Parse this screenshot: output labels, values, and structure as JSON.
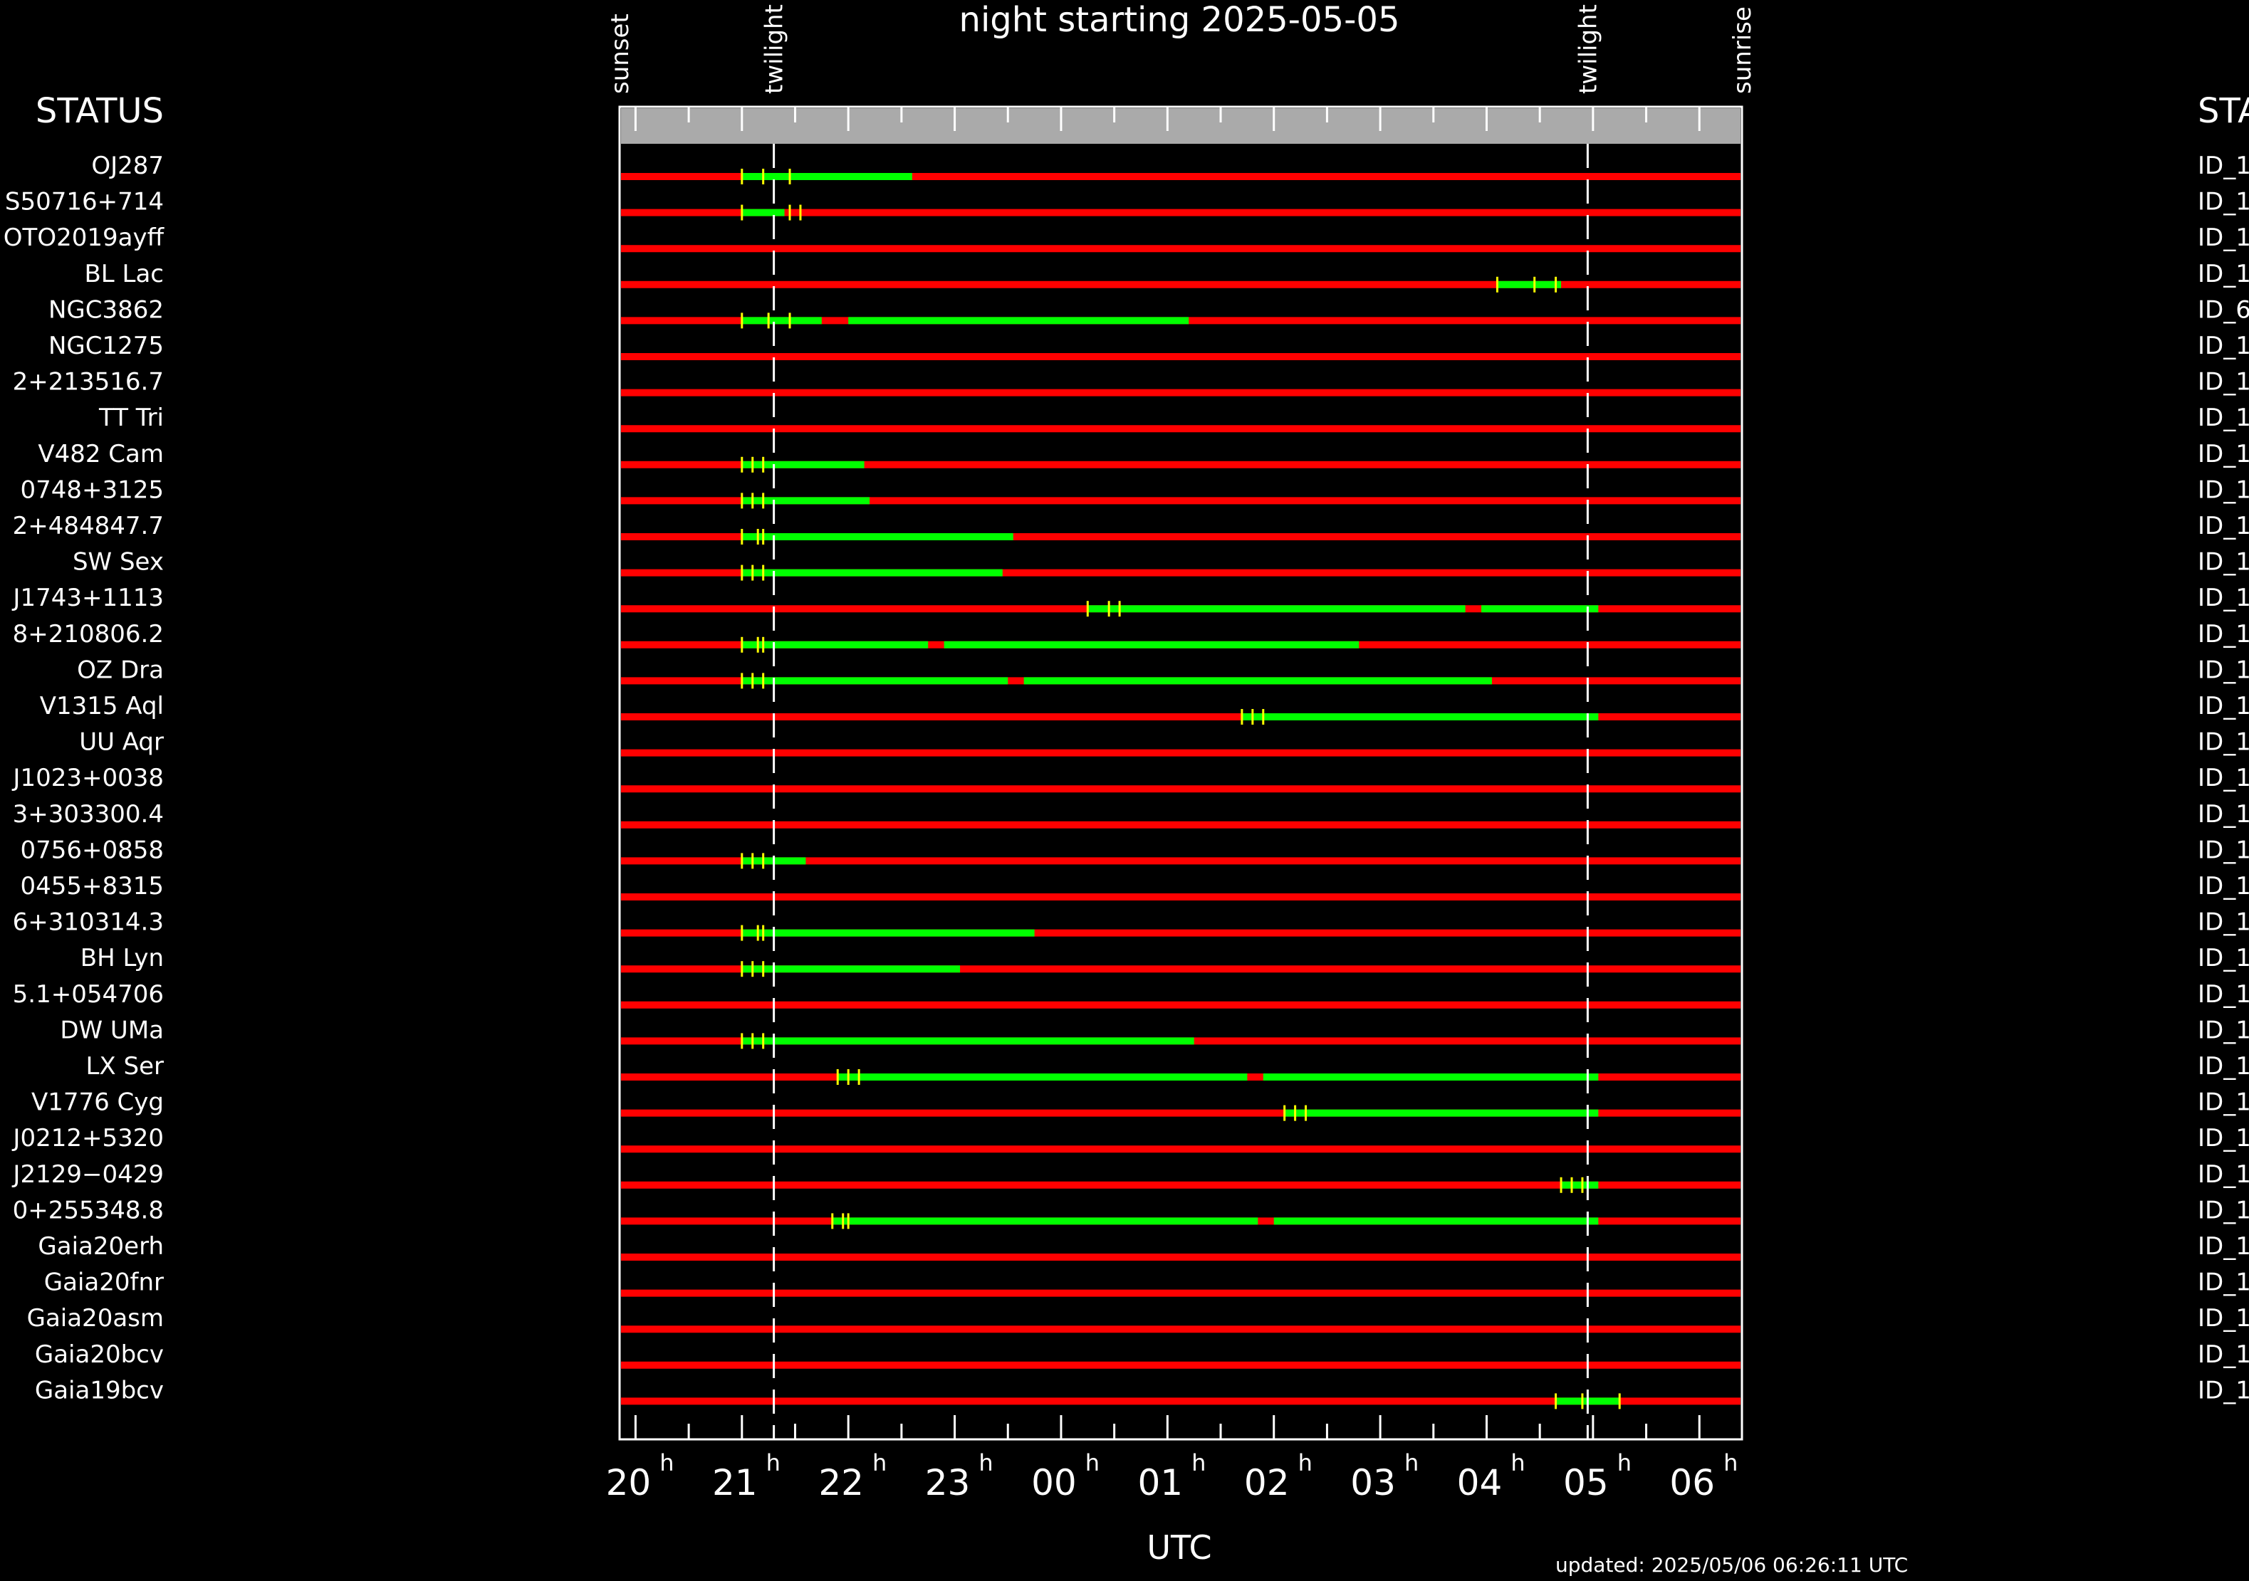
{
  "chart_data": {
    "type": "timeline",
    "title": "night starting 2025-05-05",
    "xlabel": "UTC",
    "updated": "updated: 2025/05/06 06:26:11 UTC",
    "left_header": "STATUS",
    "right_header": "STA",
    "x_range_hours": [
      19.85,
      6.4
    ],
    "events": [
      {
        "label": "sunset",
        "t": 19.85,
        "line": false
      },
      {
        "label": "twilight",
        "t": 21.3,
        "line": true
      },
      {
        "label": "twilight",
        "t": 4.95,
        "line": true
      },
      {
        "label": "sunrise",
        "t": 6.4,
        "line": false
      }
    ],
    "ticks": [
      {
        "t": 20,
        "label": "20",
        "sup": "h"
      },
      {
        "t": 21,
        "label": "21",
        "sup": "h"
      },
      {
        "t": 22,
        "label": "22",
        "sup": "h"
      },
      {
        "t": 23,
        "label": "23",
        "sup": "h"
      },
      {
        "t": 0,
        "label": "00",
        "sup": "h"
      },
      {
        "t": 1,
        "label": "01",
        "sup": "h"
      },
      {
        "t": 2,
        "label": "02",
        "sup": "h"
      },
      {
        "t": 3,
        "label": "03",
        "sup": "h"
      },
      {
        "t": 4,
        "label": "04",
        "sup": "h"
      },
      {
        "t": 5,
        "label": "05",
        "sup": "h"
      },
      {
        "t": 6,
        "label": "06",
        "sup": "h"
      }
    ],
    "minor_ticks_per_hour": 2,
    "colors": {
      "unavailable": "#ff0000",
      "available": "#00ff00",
      "marker": "#ffff00",
      "header_bar": "#aaaaaa"
    },
    "rows": [
      {
        "name": "OJ287",
        "id": "ID_1",
        "green": [
          [
            21.0,
            22.6
          ]
        ],
        "markers": [
          21.0,
          21.2,
          21.45
        ]
      },
      {
        "name": "S50716+714",
        "id": "ID_1",
        "green": [
          [
            21.0,
            21.4
          ]
        ],
        "markers": [
          21.0,
          21.45,
          21.55
        ]
      },
      {
        "name": "OTO2019ayff",
        "id": "ID_1",
        "green": [],
        "markers": []
      },
      {
        "name": "BL Lac",
        "id": "ID_1",
        "green": [
          [
            4.1,
            4.7
          ]
        ],
        "markers": [
          4.1,
          4.45,
          4.65
        ]
      },
      {
        "name": "NGC3862",
        "id": "ID_6",
        "green": [
          [
            21.0,
            21.75
          ],
          [
            22.0,
            1.2
          ]
        ],
        "markers": [
          21.0,
          21.25,
          21.45
        ]
      },
      {
        "name": "NGC1275",
        "id": "ID_1",
        "green": [],
        "markers": []
      },
      {
        "name": "2+213516.7",
        "id": "ID_1",
        "green": [],
        "markers": []
      },
      {
        "name": "TT Tri",
        "id": "ID_1",
        "green": [],
        "markers": []
      },
      {
        "name": "V482 Cam",
        "id": "ID_1",
        "green": [
          [
            21.0,
            22.15
          ]
        ],
        "markers": [
          21.0,
          21.1,
          21.2
        ]
      },
      {
        "name": "0748+3125",
        "id": "ID_1",
        "green": [
          [
            21.0,
            22.2
          ]
        ],
        "markers": [
          21.0,
          21.1,
          21.2
        ]
      },
      {
        "name": "2+484847.7",
        "id": "ID_1",
        "green": [
          [
            21.0,
            23.55
          ]
        ],
        "markers": [
          21.0,
          21.15,
          21.2
        ]
      },
      {
        "name": "SW Sex",
        "id": "ID_1",
        "green": [
          [
            21.0,
            23.45
          ]
        ],
        "markers": [
          21.0,
          21.1,
          21.2
        ]
      },
      {
        "name": "J1743+1113",
        "id": "ID_1",
        "green": [
          [
            0.25,
            3.8
          ],
          [
            3.95,
            5.05
          ]
        ],
        "markers": [
          0.25,
          0.45,
          0.55
        ]
      },
      {
        "name": "8+210806.2",
        "id": "ID_1",
        "green": [
          [
            21.0,
            22.75
          ],
          [
            22.9,
            2.8
          ]
        ],
        "markers": [
          21.0,
          21.15,
          21.2
        ]
      },
      {
        "name": "OZ Dra",
        "id": "ID_1",
        "green": [
          [
            21.0,
            23.5
          ],
          [
            23.65,
            4.05
          ]
        ],
        "markers": [
          21.0,
          21.1,
          21.2
        ]
      },
      {
        "name": "V1315 Aql",
        "id": "ID_1",
        "green": [
          [
            1.7,
            5.05
          ]
        ],
        "markers": [
          1.7,
          1.8,
          1.9
        ]
      },
      {
        "name": "UU Aqr",
        "id": "ID_1",
        "green": [],
        "markers": []
      },
      {
        "name": "J1023+0038",
        "id": "ID_1",
        "green": [],
        "markers": []
      },
      {
        "name": "3+303300.4",
        "id": "ID_1",
        "green": [],
        "markers": []
      },
      {
        "name": "0756+0858",
        "id": "ID_1",
        "green": [
          [
            21.0,
            21.6
          ]
        ],
        "markers": [
          21.0,
          21.1,
          21.2
        ]
      },
      {
        "name": "0455+8315",
        "id": "ID_1",
        "green": [],
        "markers": []
      },
      {
        "name": "6+310314.3",
        "id": "ID_1",
        "green": [
          [
            21.0,
            23.75
          ]
        ],
        "markers": [
          21.0,
          21.15,
          21.2
        ]
      },
      {
        "name": "BH Lyn",
        "id": "ID_1",
        "green": [
          [
            21.0,
            23.05
          ]
        ],
        "markers": [
          21.0,
          21.1,
          21.2
        ]
      },
      {
        "name": "5.1+054706",
        "id": "ID_1",
        "green": [],
        "markers": []
      },
      {
        "name": "DW UMa",
        "id": "ID_1",
        "green": [
          [
            21.0,
            1.25
          ]
        ],
        "markers": [
          21.0,
          21.1,
          21.2
        ]
      },
      {
        "name": "LX Ser",
        "id": "ID_1",
        "green": [
          [
            21.9,
            1.75
          ],
          [
            1.9,
            5.05
          ]
        ],
        "markers": [
          21.9,
          22.0,
          22.1
        ]
      },
      {
        "name": "V1776 Cyg",
        "id": "ID_1",
        "green": [
          [
            2.1,
            5.05
          ]
        ],
        "markers": [
          2.1,
          2.2,
          2.3
        ]
      },
      {
        "name": "J0212+5320",
        "id": "ID_1",
        "green": [],
        "markers": []
      },
      {
        "name": "J2129−0429",
        "id": "ID_1",
        "green": [
          [
            4.7,
            5.05
          ]
        ],
        "markers": [
          4.7,
          4.8,
          4.9
        ]
      },
      {
        "name": "0+255348.8",
        "id": "ID_1",
        "green": [
          [
            21.85,
            1.85
          ],
          [
            2.0,
            5.05
          ]
        ],
        "markers": [
          21.85,
          21.95,
          22.0
        ]
      },
      {
        "name": "Gaia20erh",
        "id": "ID_1",
        "green": [],
        "markers": []
      },
      {
        "name": "Gaia20fnr",
        "id": "ID_1",
        "green": [],
        "markers": []
      },
      {
        "name": "Gaia20asm",
        "id": "ID_1",
        "green": [],
        "markers": []
      },
      {
        "name": "Gaia20bcv",
        "id": "ID_1",
        "green": [],
        "markers": []
      },
      {
        "name": "Gaia19bcv",
        "id": "ID_1",
        "green": [
          [
            4.65,
            5.25
          ]
        ],
        "markers": [
          4.65,
          4.9,
          5.25
        ]
      }
    ]
  }
}
